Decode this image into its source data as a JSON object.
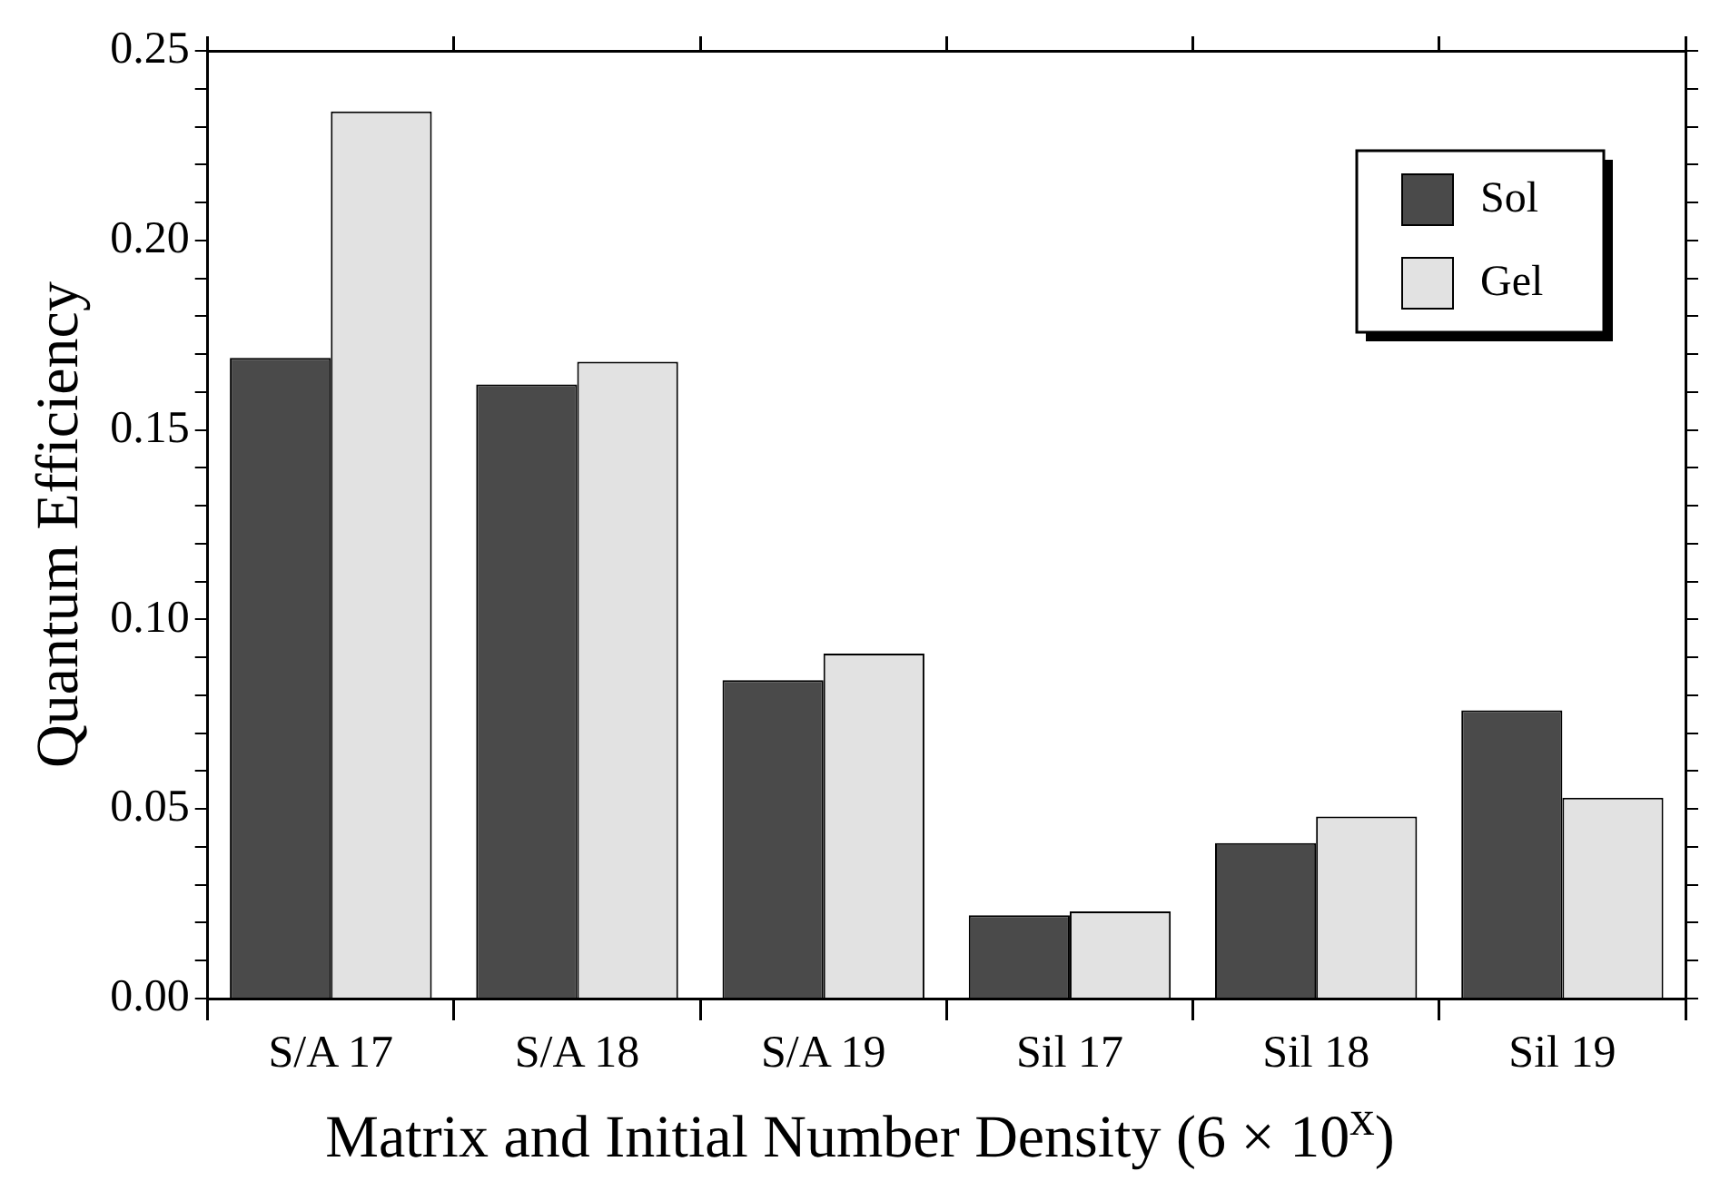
{
  "chart_data": {
    "type": "bar",
    "xlabel": "Matrix and Initial Number Density (6 × 10$^{x}$)",
    "ylabel": "Quantum Efficiency",
    "categories": [
      "S/A 17",
      "S/A 18",
      "S/A 19",
      "Sil 17",
      "Sil 18",
      "Sil 19"
    ],
    "series": [
      {
        "name": "Sol",
        "color": "#4a4a4a",
        "values": [
          0.169,
          0.162,
          0.084,
          0.022,
          0.041,
          0.076
        ]
      },
      {
        "name": "Gel",
        "color": "#e2e2e2",
        "values": [
          0.234,
          0.168,
          0.091,
          0.023,
          0.048,
          0.053
        ]
      }
    ],
    "ylim": [
      0,
      0.25
    ],
    "yticks": [
      {
        "value": 0,
        "label": "0.00"
      },
      {
        "value": 0.01,
        "label": null
      },
      {
        "value": 0.02,
        "label": null
      },
      {
        "value": 0.03,
        "label": null
      },
      {
        "value": 0.04,
        "label": null
      },
      {
        "value": 0.05,
        "label": "0.05"
      },
      {
        "value": 0.06,
        "label": null
      },
      {
        "value": 0.07,
        "label": null
      },
      {
        "value": 0.08,
        "label": null
      },
      {
        "value": 0.09,
        "label": null
      },
      {
        "value": 0.1,
        "label": "0.10"
      },
      {
        "value": 0.11,
        "label": null
      },
      {
        "value": 0.12,
        "label": null
      },
      {
        "value": 0.13,
        "label": null
      },
      {
        "value": 0.14,
        "label": null
      },
      {
        "value": 0.15,
        "label": "0.15"
      },
      {
        "value": 0.16,
        "label": null
      },
      {
        "value": 0.17,
        "label": null
      },
      {
        "value": 0.18,
        "label": null
      },
      {
        "value": 0.19,
        "label": null
      },
      {
        "value": 0.2,
        "label": "0.20"
      },
      {
        "value": 0.21,
        "label": null
      },
      {
        "value": 0.22,
        "label": null
      },
      {
        "value": 0.23,
        "label": null
      },
      {
        "value": 0.24,
        "label": null
      },
      {
        "value": 0.25,
        "label": "0.25"
      }
    ],
    "grid": false,
    "legend": "top right"
  }
}
